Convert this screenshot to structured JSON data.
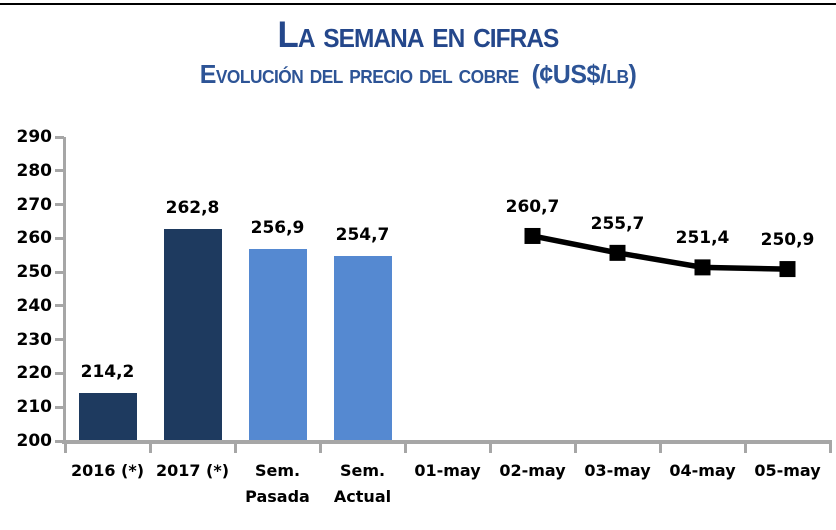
{
  "header": {
    "title": "La semana en cifras",
    "subtitle": "Evolución del precio del cobre  (¢US$/lb)"
  },
  "chart_data": {
    "type": "combo",
    "title": "La semana en cifras",
    "subtitle": "Evolución del precio del cobre  (¢US$/lb)",
    "categories": [
      "2016 (*)",
      "2017 (*)",
      "Sem. Pasada",
      "Sem. Actual",
      "01-may",
      "02-may",
      "03-may",
      "04-may",
      "05-may"
    ],
    "series": [
      {
        "name": "bars-promedio",
        "type": "bar",
        "values": [
          214.2,
          262.8,
          256.9,
          254.7,
          null,
          null,
          null,
          null,
          null
        ],
        "labels": [
          "214,2",
          "262,8",
          "256,9",
          "254,7",
          null,
          null,
          null,
          null,
          null
        ],
        "bar_colors": [
          "#1E3A5F",
          "#1E3A5F",
          "#5589D1",
          "#5589D1",
          null,
          null,
          null,
          null,
          null
        ]
      },
      {
        "name": "line-precio-diario",
        "type": "line",
        "values": [
          null,
          null,
          null,
          null,
          null,
          260.7,
          255.7,
          251.4,
          250.9
        ],
        "labels": [
          null,
          null,
          null,
          null,
          null,
          "260,7",
          "255,7",
          "251,4",
          "250,9"
        ],
        "color": "#000000",
        "marker": "square"
      }
    ],
    "ylim": [
      200,
      290
    ],
    "ytick_step": 10,
    "yticks": [
      290,
      280,
      270,
      260,
      250,
      240,
      230,
      220,
      210,
      200
    ],
    "grid": false,
    "legend": "none",
    "axis_color": "#A6A6A6",
    "text_color": "#000000",
    "background": "#FFFFFF"
  }
}
